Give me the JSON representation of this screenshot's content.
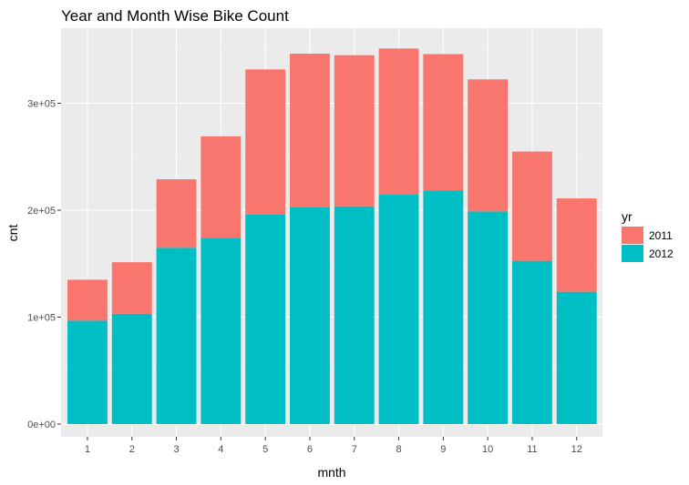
{
  "chart_data": {
    "type": "bar",
    "stacked": true,
    "title": "Year and Month Wise Bike Count",
    "xlabel": "mnth",
    "ylabel": "cnt",
    "categories": [
      "1",
      "2",
      "3",
      "4",
      "5",
      "6",
      "7",
      "8",
      "9",
      "10",
      "11",
      "12"
    ],
    "series": [
      {
        "name": "2011",
        "color": "#F8766D",
        "values": [
          38189,
          48215,
          64045,
          94870,
          135821,
          143512,
          141341,
          136691,
          127418,
          123511,
          102167,
          87323
        ]
      },
      {
        "name": "2012",
        "color": "#00BFC4",
        "values": [
          96744,
          103137,
          164875,
          174224,
          195865,
          202830,
          203607,
          214503,
          218573,
          198841,
          152664,
          123713
        ]
      }
    ],
    "ylim": [
      0,
      360000
    ],
    "yticks": [
      {
        "value": 0,
        "label": "0e+00"
      },
      {
        "value": 100000,
        "label": "1e+05"
      },
      {
        "value": 200000,
        "label": "2e+05"
      },
      {
        "value": 300000,
        "label": "3e+05"
      }
    ],
    "grid": true,
    "legend": {
      "title": "yr",
      "position": "right"
    }
  }
}
